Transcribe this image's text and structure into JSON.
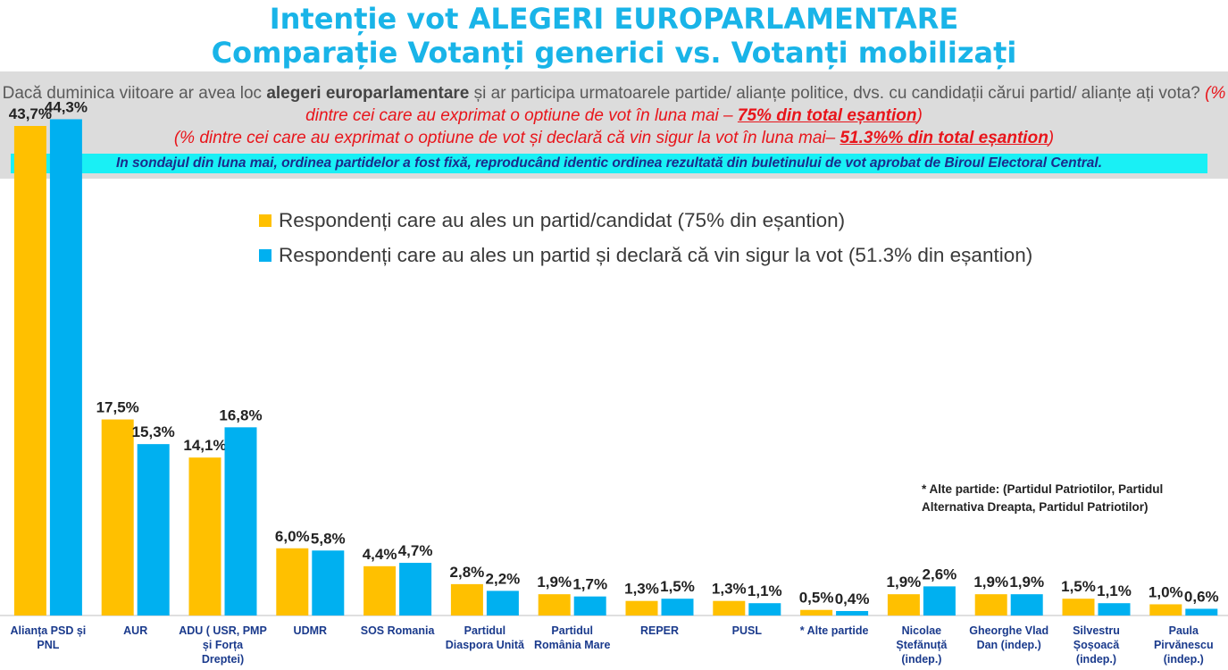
{
  "header": {
    "title_line1": "Intenție vot ALEGERI EUROPARLAMENTARE",
    "title_line2": "Comparație Votanți generici vs. Votanți mobilizați"
  },
  "question": {
    "part1": "Dacă duminica viitoare ar avea loc ",
    "bold": "alegeri europarlamentare",
    "part2": " și ar participa urmatoarele partide/ alianțe politice, dvs. cu candidații cărui partid/ alianțe ați vota?",
    "red1_prefix": " (% dintre cei care au exprimat o optiune de vot în luna mai – ",
    "red1_underlined": "75% din total eșantion",
    "red1_suffix": ")",
    "red2_prefix": "(% dintre cei care au exprimat o optiune de vot și declară că vin sigur la vot în luna mai– ",
    "red2_underlined": "51.3%% din total eșantion",
    "red2_suffix": ")"
  },
  "note": "In sondajul din luna mai, ordinea partidelor a fost fixă, reproducând identic ordinea rezultată din buletinului de vot aprobat de Biroul Electoral Central.",
  "footnote": "* Alte partide: (Partidul Patriotilor, Partidul Alternativa Dreapta, Partidul Patriotilor)",
  "colors": {
    "title": "#19b4e8",
    "series1": "#ffc000",
    "series2": "#00b0f0",
    "note_bg": "#19f0f5",
    "red": "#e8151b"
  },
  "chart_data": {
    "type": "bar",
    "categories": [
      "Alianța PSD și PNL",
      "AUR",
      "ADU ( USR, PMP și Forța Dreptei)",
      "UDMR",
      "SOS Romania",
      "Partidul Diaspora Unită",
      "Partidul România Mare",
      "REPER",
      "PUSL",
      "* Alte partide",
      "Nicolae Ștefănuță (indep.)",
      "Gheorghe Vlad Dan (indep.)",
      "Silvestru Șoșoacă (indep.)",
      "Paula Pirvănescu (indep.)"
    ],
    "series": [
      {
        "name": "Respondenți care au ales un partid/candidat (75% din eșantion)",
        "values": [
          43.7,
          17.5,
          14.1,
          6.0,
          4.4,
          2.8,
          1.9,
          1.3,
          1.3,
          0.5,
          1.9,
          1.9,
          1.5,
          1.0
        ],
        "labels": [
          "43,7%",
          "17,5%",
          "14,1%",
          "6,0%",
          "4,4%",
          "2,8%",
          "1,9%",
          "1,3%",
          "1,3%",
          "0,5%",
          "1,9%",
          "1,9%",
          "1,5%",
          "1,0%"
        ]
      },
      {
        "name": "Respondenți care au ales un partid și declară că vin sigur la vot (51.3% din eșantion)",
        "values": [
          44.3,
          15.3,
          16.8,
          5.8,
          4.7,
          2.2,
          1.7,
          1.5,
          1.1,
          0.4,
          2.6,
          1.9,
          1.1,
          0.6
        ],
        "labels": [
          "44,3%",
          "15,3%",
          "16,8%",
          "5,8%",
          "4,7%",
          "2,2%",
          "1,7%",
          "1,5%",
          "1,1%",
          "0,4%",
          "2,6%",
          "1,9%",
          "1,1%",
          "0,6%"
        ]
      }
    ],
    "ylim": [
      0,
      50
    ],
    "legend": "top-center",
    "grid": false
  }
}
